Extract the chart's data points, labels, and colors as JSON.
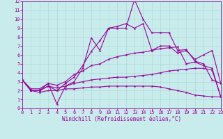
{
  "xlabel": "Windchill (Refroidissement éolien,°C)",
  "bg_color": "#c8ecec",
  "grid_color": "#b0d8d8",
  "line_color": "#990099",
  "xlim": [
    0,
    23
  ],
  "ylim": [
    0,
    12
  ],
  "xticks": [
    0,
    1,
    2,
    3,
    4,
    5,
    6,
    7,
    8,
    9,
    10,
    11,
    12,
    13,
    14,
    15,
    16,
    17,
    18,
    19,
    20,
    21,
    22,
    23
  ],
  "yticks": [
    0,
    1,
    2,
    3,
    4,
    5,
    6,
    7,
    8,
    9,
    10,
    11,
    12
  ],
  "line1_x": [
    0,
    1,
    2,
    3,
    4,
    5,
    6,
    7,
    8,
    9,
    10,
    11,
    12,
    13,
    14,
    15,
    16,
    17,
    18,
    19,
    20,
    21,
    22,
    23
  ],
  "line1_y": [
    3.2,
    2.0,
    2.0,
    2.8,
    0.5,
    2.5,
    3.0,
    4.5,
    7.9,
    6.5,
    9.0,
    9.0,
    9.0,
    12.2,
    10.0,
    8.5,
    8.5,
    8.5,
    6.5,
    6.6,
    5.3,
    5.0,
    3.2,
    2.8
  ],
  "line2_x": [
    0,
    1,
    2,
    3,
    4,
    5,
    6,
    7,
    8,
    9,
    10,
    11,
    12,
    13,
    14,
    15,
    16,
    17,
    18,
    19,
    20,
    21,
    22,
    23
  ],
  "line2_y": [
    3.2,
    2.0,
    2.0,
    2.5,
    2.0,
    2.8,
    3.5,
    4.8,
    6.4,
    7.6,
    9.0,
    9.2,
    9.5,
    9.0,
    9.5,
    6.5,
    7.0,
    7.0,
    6.2,
    6.5,
    5.5,
    6.0,
    6.5,
    2.8
  ],
  "line3_x": [
    0,
    1,
    2,
    3,
    4,
    5,
    6,
    7,
    8,
    9,
    10,
    11,
    12,
    13,
    14,
    15,
    16,
    17,
    18,
    19,
    20,
    21,
    22,
    23
  ],
  "line3_y": [
    3.2,
    2.2,
    2.2,
    2.8,
    2.6,
    3.0,
    3.8,
    4.2,
    4.8,
    5.0,
    5.5,
    5.8,
    6.0,
    6.2,
    6.3,
    6.5,
    6.7,
    6.8,
    6.9,
    5.0,
    5.2,
    4.8,
    4.5,
    1.3
  ],
  "line4_x": [
    0,
    1,
    2,
    3,
    4,
    5,
    6,
    7,
    8,
    9,
    10,
    11,
    12,
    13,
    14,
    15,
    16,
    17,
    18,
    19,
    20,
    21,
    22,
    23
  ],
  "line4_y": [
    3.2,
    2.0,
    2.0,
    2.5,
    2.3,
    2.5,
    2.8,
    3.0,
    3.2,
    3.3,
    3.4,
    3.5,
    3.5,
    3.6,
    3.7,
    3.8,
    4.0,
    4.2,
    4.3,
    4.4,
    4.5,
    4.5,
    4.3,
    1.3
  ],
  "line5_x": [
    0,
    1,
    2,
    3,
    4,
    5,
    6,
    7,
    8,
    9,
    10,
    11,
    12,
    13,
    14,
    15,
    16,
    17,
    18,
    19,
    20,
    21,
    22,
    23
  ],
  "line5_y": [
    3.2,
    2.0,
    1.8,
    2.0,
    2.0,
    2.2,
    2.2,
    2.3,
    2.4,
    2.4,
    2.5,
    2.5,
    2.5,
    2.5,
    2.5,
    2.5,
    2.4,
    2.2,
    2.0,
    1.8,
    1.5,
    1.4,
    1.3,
    1.3
  ],
  "tick_fontsize": 5.0,
  "xlabel_fontsize": 5.5
}
